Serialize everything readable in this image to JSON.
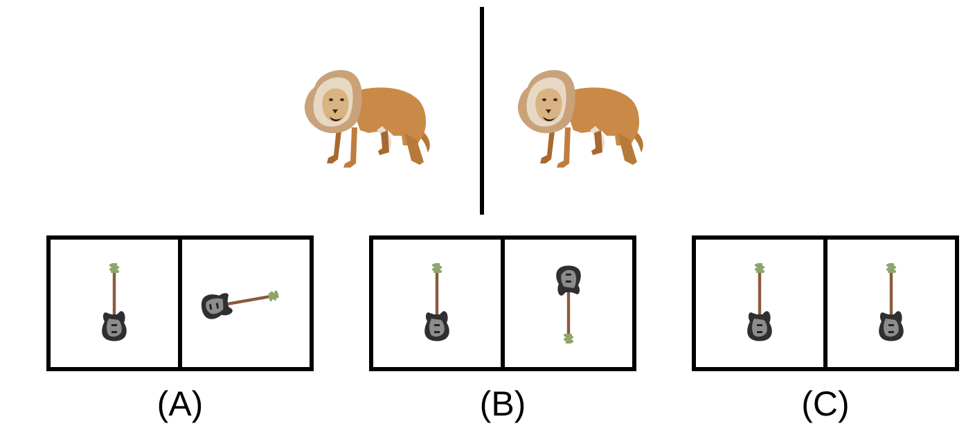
{
  "top": {
    "left_image": "lion",
    "right_image": "lion"
  },
  "options": [
    {
      "label": "(A)",
      "left_image": "bass-guitar",
      "right_image": "bass-guitar"
    },
    {
      "label": "(B)",
      "left_image": "bass-guitar",
      "right_image": "bass-guitar"
    },
    {
      "label": "(C)",
      "left_image": "bass-guitar",
      "right_image": "bass-guitar"
    }
  ]
}
